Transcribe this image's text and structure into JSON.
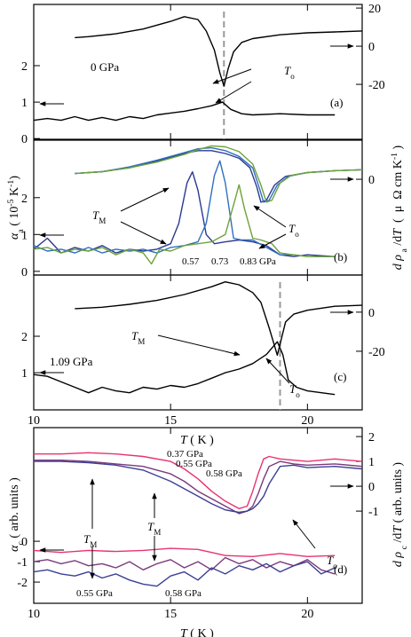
{
  "chart_data": [
    {
      "type": "line",
      "panel_label": "(a)",
      "xlim": [
        10,
        22
      ],
      "xticks": [
        10,
        15,
        20
      ],
      "xtick_labels": false,
      "ylim": [
        -0.02,
        3.68
      ],
      "yticks": [
        0,
        1,
        2
      ],
      "y2lim": [
        -48.8,
        21.9
      ],
      "y2ticks": [
        20,
        0,
        -20
      ],
      "vline": 16.95,
      "series": [
        {
          "color": "#000000",
          "axis": "y2",
          "x": [
            11.5,
            12,
            13,
            14,
            15,
            15.5,
            16,
            16.3,
            16.6,
            16.8,
            16.95,
            17.1,
            17.3,
            17.6,
            18,
            19,
            20,
            21,
            22
          ],
          "values": [
            4.5,
            5,
            6.5,
            9,
            13,
            15.5,
            14,
            8,
            -2,
            -14,
            -21,
            -12,
            -3,
            2,
            4,
            6,
            7,
            7.5,
            8
          ]
        },
        {
          "color": "#000000",
          "axis": "y",
          "x": [
            10,
            10.5,
            11,
            11.5,
            12,
            12.5,
            13,
            13.5,
            14,
            14.5,
            15,
            15.5,
            16,
            16.5,
            16.9,
            17.2,
            17.6,
            18,
            19,
            20,
            21
          ],
          "values": [
            0.5,
            0.55,
            0.5,
            0.6,
            0.5,
            0.58,
            0.5,
            0.6,
            0.55,
            0.65,
            0.7,
            0.75,
            0.82,
            0.9,
            1.0,
            0.8,
            0.68,
            0.65,
            0.68,
            0.65,
            0.65
          ]
        }
      ],
      "annotations": [
        [
          {
            "text": "0 GPa"
          }
        ],
        [
          {
            "text": "T",
            "style": "italic"
          },
          {
            "text": "o",
            "style": "sub"
          }
        ],
        [
          {
            "text": "(a)"
          }
        ]
      ]
    },
    {
      "type": "line",
      "panel_label": "(b)",
      "xlim": [
        10,
        22
      ],
      "xticks": [
        10,
        15,
        20
      ],
      "xtick_labels": false,
      "ylim": [
        -0.1,
        3.56
      ],
      "yticks": [
        0,
        1,
        2
      ],
      "y2lim": [
        -50.2,
        20.5
      ],
      "y2ticks": [
        0
      ],
      "ylabel": [
        {
          "text": "α",
          "style": "italic"
        },
        {
          "text": "a",
          "style": "sub"
        },
        {
          "text": " ( 10"
        },
        {
          "text": "-5",
          "style": "sup"
        },
        {
          "text": " K"
        },
        {
          "text": "-1",
          "style": "sup"
        },
        {
          "text": ")"
        }
      ],
      "y2label": [
        {
          "text": "d",
          "style": "italic"
        },
        {
          "text": " ρ",
          "style": "italic"
        },
        {
          "text": " a",
          "style": "sub"
        },
        {
          "text": " /d"
        },
        {
          "text": "T",
          "style": "italic"
        },
        {
          "text": "  (  μ  Ω cm K"
        },
        {
          "text": "-1",
          "style": "sup"
        },
        {
          "text": " )"
        }
      ],
      "series": [
        {
          "color": "#2b3990",
          "axis": "y2",
          "x": [
            11.5,
            12.5,
            13.5,
            14.5,
            15.5,
            16,
            16.5,
            17,
            17.5,
            17.9,
            18.15,
            18.3,
            18.5,
            18.8,
            19.2,
            20,
            21,
            22
          ],
          "values": [
            3,
            4,
            6,
            9.5,
            13.5,
            15,
            15,
            13.5,
            11,
            6,
            -4,
            -12,
            -11,
            -3,
            1.5,
            3.5,
            4.5,
            5
          ]
        },
        {
          "color": "#2f6fc0",
          "axis": "y2",
          "x": [
            11.5,
            12.5,
            13.5,
            14.5,
            15.5,
            16,
            16.5,
            17,
            17.5,
            18,
            18.25,
            18.4,
            18.6,
            18.9,
            19.3,
            20,
            21,
            22
          ],
          "values": [
            3,
            4,
            6.5,
            10,
            14,
            16,
            16.5,
            15,
            12,
            6,
            -5,
            -12,
            -11,
            -3,
            1.5,
            3.5,
            4.5,
            5
          ]
        },
        {
          "color": "#6fa23a",
          "axis": "y2",
          "x": [
            11.5,
            12.5,
            13.5,
            14.5,
            15.5,
            16,
            16.5,
            17,
            17.5,
            18,
            18.3,
            18.5,
            18.7,
            19,
            19.4,
            20,
            21,
            22
          ],
          "values": [
            3,
            4,
            6,
            9,
            13,
            15.5,
            17.5,
            17,
            14.5,
            8,
            -3,
            -12,
            -11,
            -2,
            2,
            3.5,
            4.5,
            5
          ]
        },
        {
          "color": "#2b3990",
          "axis": "y",
          "x": [
            10,
            10.5,
            11,
            11.5,
            12,
            12.5,
            13,
            13.5,
            14,
            14.5,
            15,
            15.3,
            15.6,
            15.8,
            16,
            16.3,
            16.6,
            17,
            17.5,
            18,
            18.5,
            19,
            19.5,
            20,
            21
          ],
          "values": [
            0.6,
            0.9,
            0.5,
            0.65,
            0.55,
            0.7,
            0.5,
            0.6,
            0.55,
            0.6,
            0.75,
            1.3,
            2.4,
            2.7,
            2.2,
            1.0,
            0.75,
            0.8,
            0.85,
            0.8,
            0.7,
            0.45,
            0.4,
            0.45,
            0.4
          ]
        },
        {
          "color": "#2f6fc0",
          "axis": "y",
          "x": [
            10,
            10.5,
            11,
            11.5,
            12,
            12.5,
            13,
            13.5,
            14,
            14.5,
            15,
            15.5,
            16,
            16.3,
            16.6,
            16.8,
            17,
            17.3,
            17.6,
            18,
            18.5,
            19,
            19.5,
            20,
            21
          ],
          "values": [
            0.7,
            0.55,
            0.6,
            0.5,
            0.65,
            0.5,
            0.6,
            0.55,
            0.6,
            0.5,
            0.65,
            0.7,
            0.8,
            1.3,
            2.6,
            3.0,
            2.4,
            0.9,
            0.85,
            0.85,
            0.65,
            0.45,
            0.45,
            0.4,
            0.4
          ]
        },
        {
          "color": "#6fa23a",
          "axis": "y",
          "x": [
            10,
            10.5,
            11,
            11.5,
            12,
            12.5,
            13,
            13.5,
            14,
            14.3,
            14.6,
            15,
            15.5,
            16,
            16.5,
            17,
            17.3,
            17.5,
            17.7,
            18,
            18.3,
            18.7,
            19,
            19.5,
            20,
            21
          ],
          "values": [
            0.6,
            0.65,
            0.5,
            0.6,
            0.55,
            0.65,
            0.45,
            0.6,
            0.5,
            0.2,
            0.6,
            0.55,
            0.7,
            0.75,
            0.8,
            1.0,
            1.8,
            2.35,
            1.7,
            0.9,
            0.85,
            0.75,
            0.5,
            0.45,
            0.4,
            0.4
          ]
        }
      ],
      "annotations": [
        [
          {
            "text": "T",
            "style": "italic"
          },
          {
            "text": "M",
            "style": "sub"
          }
        ],
        [
          {
            "text": "T",
            "style": "italic"
          },
          {
            "text": "o",
            "style": "sub"
          }
        ],
        [
          {
            "text": "(b)"
          }
        ],
        [
          {
            "text": "0.57"
          }
        ],
        [
          {
            "text": "0.73"
          }
        ],
        [
          {
            "text": "0.83 GPa"
          }
        ]
      ]
    },
    {
      "type": "line",
      "panel_label": "(c)",
      "xlim": [
        10,
        22
      ],
      "xticks": [
        10,
        15,
        20
      ],
      "xlabel": [
        {
          "text": "T",
          "style": "italic"
        },
        {
          "text": " ( K )"
        }
      ],
      "ylim": [
        -0.02,
        3.68
      ],
      "yticks": [
        1,
        2
      ],
      "y2lim": [
        -50,
        19
      ],
      "y2ticks": [
        0,
        -20
      ],
      "vline": 19,
      "series": [
        {
          "color": "#000000",
          "axis": "y2",
          "x": [
            11.5,
            12.5,
            13.5,
            14.5,
            15.5,
            16.5,
            17,
            17.5,
            18,
            18.3,
            18.6,
            18.9,
            19.2,
            19.5,
            20,
            21,
            22
          ],
          "values": [
            1.8,
            2.5,
            4,
            6,
            9,
            13,
            15.5,
            14,
            10,
            5,
            -8,
            -22,
            -5,
            -1,
            1,
            3,
            3.5
          ]
        },
        {
          "color": "#000000",
          "axis": "y",
          "x": [
            10,
            10.5,
            11,
            11.5,
            12,
            12.5,
            13,
            13.5,
            14,
            14.5,
            15,
            15.5,
            16,
            16.5,
            17,
            17.5,
            18,
            18.5,
            18.9,
            19.1,
            19.3,
            19.6,
            20,
            21
          ],
          "values": [
            0.95,
            0.9,
            0.75,
            0.6,
            0.45,
            0.6,
            0.5,
            0.45,
            0.6,
            0.55,
            0.65,
            0.6,
            0.7,
            0.85,
            1.0,
            1.1,
            1.25,
            1.5,
            1.85,
            1.5,
            0.8,
            0.6,
            0.5,
            0.4
          ]
        }
      ],
      "annotations": [
        [
          {
            "text": "1.09 GPa"
          }
        ],
        [
          {
            "text": "T",
            "style": "italic"
          },
          {
            "text": "M",
            "style": "sub"
          }
        ],
        [
          {
            "text": "T",
            "style": "italic"
          },
          {
            "text": "o",
            "style": "sub"
          }
        ],
        [
          {
            "text": "(c)"
          }
        ]
      ]
    },
    {
      "type": "line",
      "panel_label": "(d)",
      "xlim": [
        10,
        22
      ],
      "xticks": [
        10,
        15,
        20
      ],
      "xlabel": [
        {
          "text": "T",
          "style": "italic"
        },
        {
          "text": " ( K )"
        }
      ],
      "ylim": [
        -3.04,
        5.57
      ],
      "yticks": [
        0,
        -1,
        -2
      ],
      "y2lim": [
        -4.71,
        2.36
      ],
      "y2ticks": [
        2,
        1,
        0,
        -1
      ],
      "ylabel": [
        {
          "text": "α",
          "style": "italic"
        },
        {
          "text": "c",
          "style": "sub"
        },
        {
          "text": " ( arb. units )"
        }
      ],
      "y2label": [
        {
          "text": "d",
          "style": "italic"
        },
        {
          "text": " ρ",
          "style": "italic"
        },
        {
          "text": " c",
          "style": "sub"
        },
        {
          "text": " /d"
        },
        {
          "text": "T",
          "style": "italic"
        },
        {
          "text": " ( arb. units )"
        }
      ],
      "series": [
        {
          "color": "#e8336e",
          "axis": "y2",
          "x": [
            10,
            11,
            12,
            13,
            14,
            15,
            15.5,
            16,
            16.5,
            17,
            17.5,
            17.8,
            18,
            18.2,
            18.4,
            18.6,
            19,
            19.5,
            20,
            21,
            22
          ],
          "values": [
            1.3,
            1.3,
            1.35,
            1.3,
            1.2,
            1.0,
            0.7,
            0.3,
            -0.2,
            -0.6,
            -0.9,
            -0.8,
            -0.2,
            0.5,
            1.1,
            1.2,
            1.1,
            1.05,
            1.0,
            1.1,
            1.0
          ]
        },
        {
          "color": "#7b3a7a",
          "axis": "y2",
          "x": [
            10,
            11,
            12,
            13,
            14,
            15,
            15.5,
            16,
            16.5,
            17,
            17.5,
            17.8,
            18,
            18.2,
            18.4,
            18.6,
            19,
            19.5,
            20,
            21,
            22
          ],
          "values": [
            1.05,
            1.05,
            1.0,
            0.9,
            0.8,
            0.5,
            0.2,
            -0.2,
            -0.5,
            -0.8,
            -1.1,
            -1.0,
            -0.8,
            -0.3,
            0.3,
            0.8,
            1.0,
            0.9,
            0.85,
            0.9,
            0.8
          ]
        },
        {
          "color": "#3c3f95",
          "axis": "y2",
          "x": [
            10,
            11,
            12,
            13,
            14,
            15,
            15.5,
            16,
            16.5,
            17,
            17.5,
            17.8,
            18,
            18.2,
            18.4,
            18.6,
            19,
            19.5,
            20,
            21,
            22
          ],
          "values": [
            1.0,
            1.0,
            0.95,
            0.85,
            0.65,
            0.2,
            -0.1,
            -0.4,
            -0.7,
            -0.95,
            -1.05,
            -1.0,
            -0.9,
            -0.7,
            -0.4,
            0.1,
            0.8,
            0.85,
            0.75,
            0.8,
            0.7
          ]
        },
        {
          "color": "#e8336e",
          "axis": "y",
          "x": [
            10,
            11,
            12,
            13,
            14,
            15,
            16,
            16.5,
            17,
            18,
            19,
            20,
            21
          ],
          "values": [
            -0.45,
            -0.55,
            -0.45,
            -0.5,
            -0.45,
            -0.35,
            -0.4,
            -0.55,
            -0.7,
            -0.75,
            -0.6,
            -0.75,
            -0.7
          ]
        },
        {
          "color": "#7b3a7a",
          "axis": "y",
          "x": [
            10,
            10.5,
            11,
            11.5,
            12,
            12.5,
            13,
            13.5,
            14,
            14.5,
            15,
            15.5,
            16,
            16.5,
            17,
            17.5,
            18,
            18.5,
            19,
            19.5,
            20,
            20.5,
            21
          ],
          "values": [
            -1.0,
            -0.9,
            -1.1,
            -0.95,
            -1.2,
            -1.1,
            -1.3,
            -1.0,
            -1.4,
            -1.1,
            -0.9,
            -1.3,
            -1.0,
            -1.4,
            -0.8,
            -1.1,
            -0.9,
            -1.3,
            -1.0,
            -1.2,
            -0.9,
            -1.4,
            -1.6
          ]
        },
        {
          "color": "#3c3f95",
          "axis": "y",
          "x": [
            10,
            10.5,
            11,
            11.5,
            12,
            12.5,
            13,
            13.5,
            14,
            14.5,
            15,
            15.5,
            16,
            16.5,
            17,
            17.5,
            18,
            18.5,
            19,
            19.5,
            20,
            20.5,
            21
          ],
          "values": [
            -1.5,
            -1.4,
            -1.6,
            -1.7,
            -1.5,
            -1.8,
            -1.6,
            -1.9,
            -2.1,
            -2.2,
            -1.7,
            -1.5,
            -1.9,
            -1.3,
            -1.6,
            -1.2,
            -1.4,
            -1.1,
            -1.5,
            -1.2,
            -1.0,
            -1.6,
            -1.3
          ]
        }
      ],
      "annotations": [
        [
          {
            "text": "0.37 GPa"
          }
        ],
        [
          {
            "text": "0.55 GPa"
          }
        ],
        [
          {
            "text": "0.58 GPa"
          }
        ],
        [
          {
            "text": "T",
            "style": "italic"
          },
          {
            "text": "M",
            "style": "sub"
          }
        ],
        [
          {
            "text": "T",
            "style": "italic"
          },
          {
            "text": "M",
            "style": "sub"
          }
        ],
        [
          {
            "text": "T",
            "style": "italic"
          },
          {
            "text": "o",
            "style": "sub"
          }
        ],
        [
          {
            "text": "(d)"
          }
        ],
        [
          {
            "text": "0.55 GPa"
          }
        ],
        [
          {
            "text": "0.58 GPa"
          }
        ]
      ]
    }
  ]
}
